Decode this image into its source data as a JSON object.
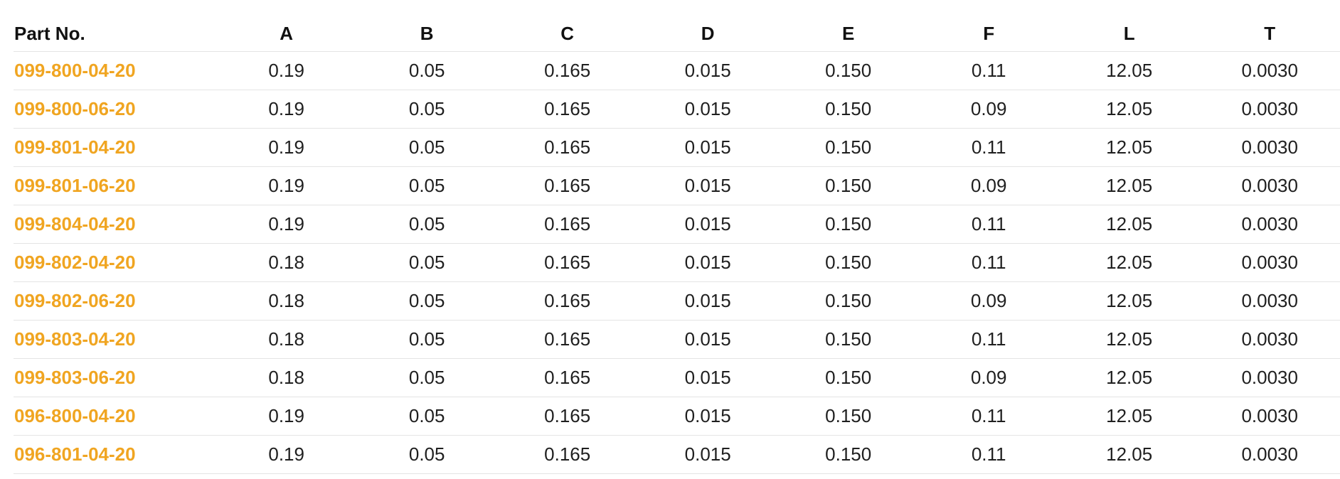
{
  "table": {
    "headers": [
      "Part No.",
      "A",
      "B",
      "C",
      "D",
      "E",
      "F",
      "L",
      "T"
    ],
    "rows": [
      [
        "099-800-04-20",
        "0.19",
        "0.05",
        "0.165",
        "0.015",
        "0.150",
        "0.11",
        "12.05",
        "0.0030"
      ],
      [
        "099-800-06-20",
        "0.19",
        "0.05",
        "0.165",
        "0.015",
        "0.150",
        "0.09",
        "12.05",
        "0.0030"
      ],
      [
        "099-801-04-20",
        "0.19",
        "0.05",
        "0.165",
        "0.015",
        "0.150",
        "0.11",
        "12.05",
        "0.0030"
      ],
      [
        "099-801-06-20",
        "0.19",
        "0.05",
        "0.165",
        "0.015",
        "0.150",
        "0.09",
        "12.05",
        "0.0030"
      ],
      [
        "099-804-04-20",
        "0.19",
        "0.05",
        "0.165",
        "0.015",
        "0.150",
        "0.11",
        "12.05",
        "0.0030"
      ],
      [
        "099-802-04-20",
        "0.18",
        "0.05",
        "0.165",
        "0.015",
        "0.150",
        "0.11",
        "12.05",
        "0.0030"
      ],
      [
        "099-802-06-20",
        "0.18",
        "0.05",
        "0.165",
        "0.015",
        "0.150",
        "0.09",
        "12.05",
        "0.0030"
      ],
      [
        "099-803-04-20",
        "0.18",
        "0.05",
        "0.165",
        "0.015",
        "0.150",
        "0.11",
        "12.05",
        "0.0030"
      ],
      [
        "099-803-06-20",
        "0.18",
        "0.05",
        "0.165",
        "0.015",
        "0.150",
        "0.09",
        "12.05",
        "0.0030"
      ],
      [
        "096-800-04-20",
        "0.19",
        "0.05",
        "0.165",
        "0.015",
        "0.150",
        "0.11",
        "12.05",
        "0.0030"
      ],
      [
        "096-801-04-20",
        "0.19",
        "0.05",
        "0.165",
        "0.015",
        "0.150",
        "0.11",
        "12.05",
        "0.0030"
      ]
    ]
  },
  "colors": {
    "part_link": "#f0a521",
    "text": "#1f1f1f",
    "row_border": "#e4e4e4"
  }
}
